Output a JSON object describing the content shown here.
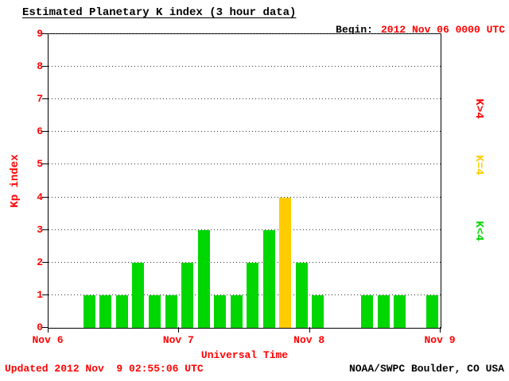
{
  "header": {
    "title": "Estimated Planetary K index (3 hour data)",
    "begin_label": "Begin:",
    "begin_value": "2012 Nov 06 0000 UTC"
  },
  "footer": {
    "updated": "Updated 2012 Nov  9 02:55:06 UTC",
    "source": "NOAA/SWPC Boulder, CO USA"
  },
  "legend": [
    {
      "label": "K>4",
      "color": "#ff0000"
    },
    {
      "label": "K=4",
      "color": "#ffcc00"
    },
    {
      "label": "K<4",
      "color": "#00d700"
    }
  ],
  "chart_data": {
    "type": "bar",
    "title": "Estimated Planetary K index (3 hour data)",
    "xlabel": "Universal Time",
    "ylabel": "Kp index",
    "ylim": [
      0,
      9
    ],
    "yticks": [
      0,
      1,
      2,
      3,
      4,
      5,
      6,
      7,
      8,
      9
    ],
    "xticks": [
      "Nov 6",
      "Nov 7",
      "Nov 8",
      "Nov 9"
    ],
    "bin_hours": 3,
    "grid": "dotted-horizontal",
    "legend_position": "right",
    "series": [
      {
        "day": "Nov 6",
        "values": [
          0,
          0,
          1,
          1,
          1,
          2,
          1,
          1
        ]
      },
      {
        "day": "Nov 7",
        "values": [
          2,
          3,
          1,
          1,
          2,
          3,
          4,
          2
        ]
      },
      {
        "day": "Nov 8",
        "values": [
          1,
          0,
          0,
          1,
          1,
          1,
          0,
          1
        ]
      }
    ],
    "colors": {
      "below4": "#00d700",
      "equal4": "#ffcc00",
      "above4": "#ff0000"
    }
  }
}
